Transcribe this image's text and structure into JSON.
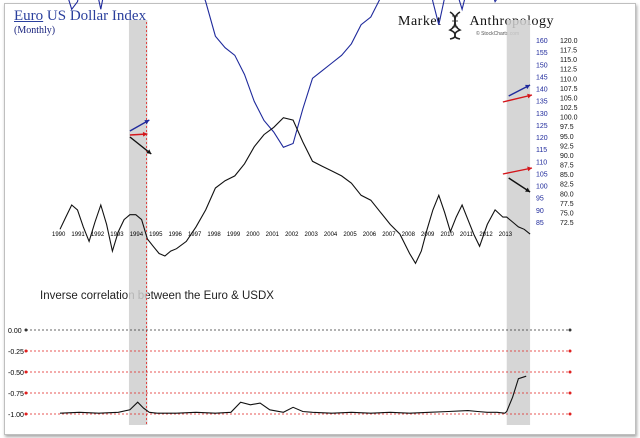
{
  "header": {
    "title_first": "Euro",
    "title_rest": "US Dollar Index",
    "subtitle": "(Monthly)",
    "brand_left": "Market",
    "brand_right": "Anthropology",
    "credit": "© StockCharts.com"
  },
  "colors": {
    "usdx": "#1f2a9c",
    "euro": "#111111",
    "arrow": "#d4161b",
    "highlight": "#cfcfcf",
    "ref_line": "#e0201f",
    "corr": "#111111"
  },
  "chart_data": [
    {
      "type": "line",
      "title": "Euro US Dollar Index",
      "subtitle": "(Monthly)",
      "x_tick_labels": [
        "1990",
        "1991",
        "1992",
        "1993",
        "1994",
        "1995",
        "1996",
        "1997",
        "1998",
        "1999",
        "2000",
        "2001",
        "2002",
        "2003",
        "2004",
        "2005",
        "2006",
        "2007",
        "2008",
        "2009",
        "2010",
        "2011",
        "2012",
        "2013"
      ],
      "xlim": [
        1990,
        2014.3
      ],
      "highlight_periods": [
        [
          1993.55,
          1994.5
        ],
        [
          2013.0,
          2014.2
        ]
      ],
      "series": [
        {
          "name": "US Dollar Index (inverted)",
          "axis": "right",
          "color": "#1f2a9c",
          "x": [
            1990,
            1990.3,
            1990.6,
            1990.9,
            1991.2,
            1991.5,
            1991.8,
            1992.1,
            1992.4,
            1992.7,
            1993.0,
            1993.3,
            1993.6,
            1993.9,
            1994.2,
            1994.5,
            1994.8,
            1995.1,
            1995.4,
            1995.7,
            1996.0,
            1996.5,
            1997.0,
            1997.5,
            1998.0,
            1998.5,
            1999.0,
            1999.5,
            2000.0,
            2000.5,
            2001.0,
            2001.5,
            2002.0,
            2002.5,
            2003.0,
            2003.5,
            2004.0,
            2004.5,
            2005.0,
            2005.5,
            2006.0,
            2006.5,
            2007.0,
            2007.5,
            2008.0,
            2008.3,
            2008.6,
            2008.9,
            2009.2,
            2009.5,
            2009.8,
            2010.1,
            2010.4,
            2010.7,
            2011.0,
            2011.3,
            2011.6,
            2012.0,
            2012.4,
            2012.8,
            2013.0,
            2013.3,
            2013.6,
            2013.9,
            2014.2
          ],
          "values": [
            138,
            133,
            128,
            130,
            137,
            143,
            135,
            128,
            136,
            147,
            139,
            134,
            133,
            136,
            137,
            142,
            145,
            148,
            149,
            147,
            146,
            143,
            137,
            130,
            121,
            118,
            116,
            111,
            104,
            99,
            96,
            92,
            93,
            102,
            110,
            112,
            114,
            116,
            119,
            124,
            126,
            131,
            136,
            140,
            148,
            152,
            147,
            138,
            130,
            124,
            131,
            139,
            133,
            128,
            134,
            140,
            145,
            136,
            130,
            133,
            131,
            133,
            135,
            138,
            140
          ]
        },
        {
          "name": "Euro",
          "axis": "left",
          "color": "#111111",
          "x": [
            1990,
            1990.3,
            1990.6,
            1990.9,
            1991.2,
            1991.5,
            1991.8,
            1992.1,
            1992.4,
            1992.7,
            1993.0,
            1993.3,
            1993.6,
            1993.9,
            1994.2,
            1994.5,
            1994.8,
            1995.1,
            1995.4,
            1995.7,
            1996.0,
            1996.5,
            1997.0,
            1997.5,
            1998.0,
            1998.5,
            1999.0,
            1999.5,
            2000.0,
            2000.5,
            2001.0,
            2001.5,
            2002.0,
            2002.5,
            2003.0,
            2003.5,
            2004.0,
            2004.5,
            2005.0,
            2005.5,
            2006.0,
            2006.5,
            2007.0,
            2007.5,
            2008.0,
            2008.3,
            2008.6,
            2008.9,
            2009.2,
            2009.5,
            2009.8,
            2010.1,
            2010.4,
            2010.7,
            2011.0,
            2011.3,
            2011.6,
            2012.0,
            2012.4,
            2012.8,
            2013.0,
            2013.3,
            2013.6,
            2013.9,
            2014.2
          ],
          "values": [
            82,
            87,
            92,
            90,
            83,
            77,
            85,
            92,
            84,
            73,
            81,
            86,
            88,
            88,
            86,
            78,
            75,
            72,
            71,
            73,
            74,
            77,
            83,
            90,
            99,
            102,
            104,
            109,
            116,
            121,
            124,
            128,
            127,
            118,
            110,
            108,
            106,
            104,
            101,
            96,
            94,
            89,
            84,
            80,
            72,
            68,
            73,
            82,
            90,
            96,
            89,
            81,
            87,
            92,
            86,
            80,
            75,
            84,
            90,
            87,
            87,
            85,
            83,
            82,
            80
          ]
        }
      ],
      "left_axis_ticks": [
        85,
        90,
        95,
        100,
        105,
        110,
        115,
        120,
        125,
        130,
        135,
        140,
        145,
        150,
        155,
        160
      ],
      "right_axis_ticks": [
        72.5,
        75.0,
        77.5,
        80.0,
        82.5,
        85.0,
        87.5,
        90.0,
        92.5,
        95.0,
        97.5,
        100.0,
        102.5,
        105.0,
        107.5,
        110.0,
        112.5,
        115.0,
        117.5,
        120.0
      ]
    },
    {
      "type": "line",
      "title": "Inverse correlation between the Euro & USDX",
      "xlim": [
        1990,
        2014.3
      ],
      "ylim": [
        -1.0,
        0.0
      ],
      "y_tick_labels": [
        "0.00",
        "-0.25",
        "-0.50",
        "-0.75",
        "-1.00"
      ],
      "y_ticks": [
        0.0,
        -0.25,
        -0.5,
        -0.75,
        -1.0
      ],
      "series": [
        {
          "name": "Correlation",
          "x": [
            1990,
            1991,
            1992,
            1993,
            1993.6,
            1994.0,
            1994.3,
            1994.6,
            1995.0,
            1996,
            1997,
            1998,
            1998.8,
            1999.3,
            1999.8,
            2000.3,
            2000.8,
            2001.5,
            2002.0,
            2002.5,
            2003,
            2004,
            2005,
            2006,
            2007,
            2008,
            2009,
            2010,
            2011,
            2011.5,
            2012,
            2012.5,
            2012.9,
            2013.0,
            2013.3,
            2013.6,
            2014.0
          ],
          "values": [
            -0.99,
            -0.98,
            -0.99,
            -0.98,
            -0.95,
            -0.86,
            -0.93,
            -0.98,
            -0.99,
            -0.99,
            -0.98,
            -0.99,
            -0.98,
            -0.86,
            -0.89,
            -0.87,
            -0.95,
            -0.98,
            -0.92,
            -0.97,
            -0.98,
            -0.99,
            -0.98,
            -0.99,
            -0.98,
            -0.99,
            -0.98,
            -0.97,
            -0.96,
            -0.97,
            -0.98,
            -0.98,
            -0.99,
            -0.97,
            -0.8,
            -0.58,
            -0.55
          ]
        }
      ]
    }
  ],
  "subchart_label": "Inverse correlation between the Euro & USDX"
}
